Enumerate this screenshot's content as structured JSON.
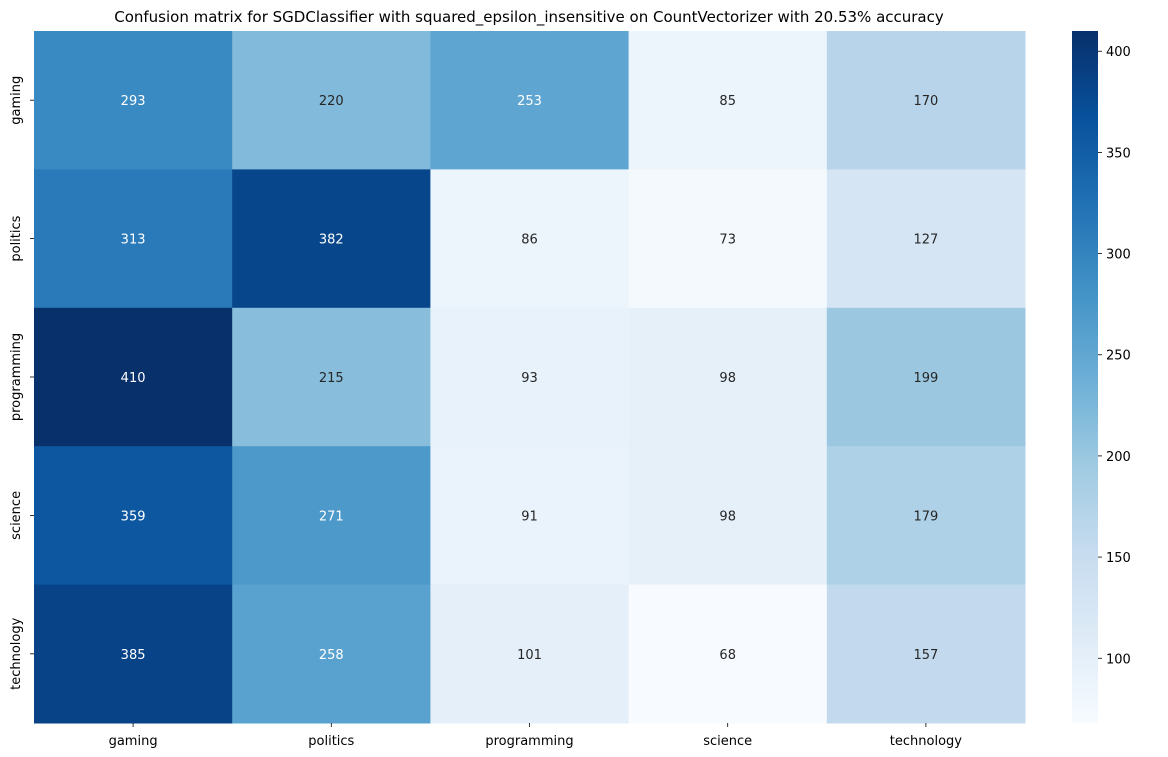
{
  "chart_data": {
    "type": "heatmap",
    "title": "Confusion matrix for SGDClassifier with squared_epsilon_insensitive on CountVectorizer with 20.53% accuracy",
    "xlabel": "",
    "ylabel": "",
    "x_categories": [
      "gaming",
      "politics",
      "programming",
      "science",
      "technology"
    ],
    "y_categories": [
      "gaming",
      "politics",
      "programming",
      "science",
      "technology"
    ],
    "values": [
      [
        293,
        220,
        253,
        85,
        170
      ],
      [
        313,
        382,
        86,
        73,
        127
      ],
      [
        410,
        215,
        93,
        98,
        199
      ],
      [
        359,
        271,
        91,
        98,
        179
      ],
      [
        385,
        258,
        101,
        68,
        157
      ]
    ],
    "colormap": "Blues",
    "vmin": 68,
    "vmax": 410,
    "colorbar_ticks": [
      100,
      150,
      200,
      250,
      300,
      350,
      400
    ],
    "grid": false
  }
}
